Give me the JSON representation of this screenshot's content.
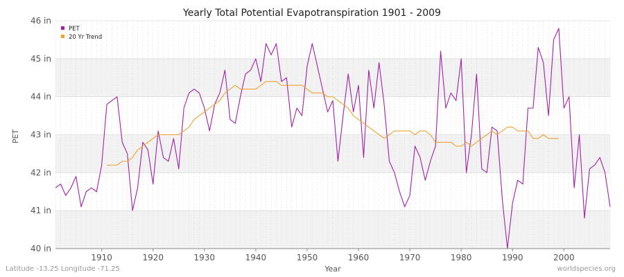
{
  "chart_data": {
    "type": "line",
    "title": "Yearly Total Potential Evapotranspiration 1901 - 2009",
    "xlabel": "Year",
    "ylabel": "PET",
    "xlim": [
      1901,
      2009
    ],
    "ylim": [
      40,
      46
    ],
    "x_ticks": [
      1910,
      1920,
      1930,
      1940,
      1950,
      1960,
      1970,
      1980,
      1990,
      2000
    ],
    "y_ticks": [
      40,
      41,
      42,
      43,
      44,
      45,
      46
    ],
    "y_tick_labels": [
      "40 in",
      "41 in",
      "42 in",
      "43 in",
      "44 in",
      "45 in",
      "46 in"
    ],
    "legend_position": "top-left",
    "colors": {
      "pet": "#a020a8",
      "trend": "#f0a030",
      "band": "#f2f2f2"
    },
    "series": [
      {
        "name": "PET",
        "x_start": 1901,
        "values": [
          41.6,
          41.7,
          41.4,
          41.6,
          41.9,
          41.1,
          41.5,
          41.6,
          41.5,
          42.2,
          43.8,
          43.9,
          44.0,
          42.8,
          42.5,
          41.0,
          41.6,
          42.8,
          42.6,
          41.7,
          43.1,
          42.4,
          42.3,
          42.9,
          42.1,
          43.7,
          44.1,
          44.2,
          44.1,
          43.7,
          43.1,
          43.8,
          44.1,
          44.7,
          43.4,
          43.3,
          44.0,
          44.6,
          44.7,
          45.0,
          44.4,
          45.4,
          45.1,
          45.4,
          44.4,
          44.5,
          43.2,
          43.7,
          43.5,
          44.8,
          45.4,
          44.8,
          44.2,
          43.6,
          43.9,
          42.3,
          43.5,
          44.6,
          43.6,
          44.3,
          42.4,
          44.7,
          43.7,
          44.9,
          43.8,
          42.3,
          42.0,
          41.5,
          41.1,
          41.4,
          42.7,
          42.4,
          41.8,
          42.3,
          42.7,
          45.2,
          43.7,
          44.1,
          43.9,
          45.0,
          42.0,
          43.0,
          44.6,
          42.1,
          42.0,
          43.2,
          43.1,
          41.3,
          40.0,
          41.2,
          41.8,
          41.7,
          43.7,
          43.7,
          45.3,
          44.9,
          43.5,
          45.5,
          45.8,
          43.7,
          44.0,
          41.6,
          43.0,
          40.8,
          42.1,
          42.2,
          42.4,
          42.0,
          41.1
        ]
      },
      {
        "name": "20 Yr Trend",
        "x_start": 1911,
        "values": [
          42.2,
          42.2,
          42.2,
          42.3,
          42.3,
          42.4,
          42.6,
          42.7,
          42.8,
          42.9,
          43.0,
          43.0,
          43.0,
          43.0,
          43.0,
          43.1,
          43.2,
          43.4,
          43.5,
          43.6,
          43.7,
          43.8,
          43.9,
          44.1,
          44.2,
          44.3,
          44.2,
          44.2,
          44.2,
          44.2,
          44.3,
          44.4,
          44.4,
          44.4,
          44.3,
          44.3,
          44.3,
          44.3,
          44.3,
          44.2,
          44.1,
          44.1,
          44.1,
          44.0,
          44.0,
          43.9,
          43.8,
          43.7,
          43.5,
          43.4,
          43.3,
          43.2,
          43.1,
          43.0,
          42.9,
          43.0,
          43.1,
          43.1,
          43.1,
          43.1,
          43.0,
          43.1,
          43.1,
          43.0,
          42.8,
          42.8,
          42.8,
          42.8,
          42.7,
          42.7,
          42.8,
          42.7,
          42.8,
          42.9,
          43.0,
          43.1,
          43.0,
          43.1,
          43.2,
          43.2,
          43.1,
          43.1,
          43.1,
          42.9,
          42.9,
          43.0,
          42.9,
          42.9,
          42.9
        ]
      }
    ]
  },
  "footer": {
    "location": "Latitude -13.25 Longitude -71.25",
    "source": "worldspecies.org"
  }
}
